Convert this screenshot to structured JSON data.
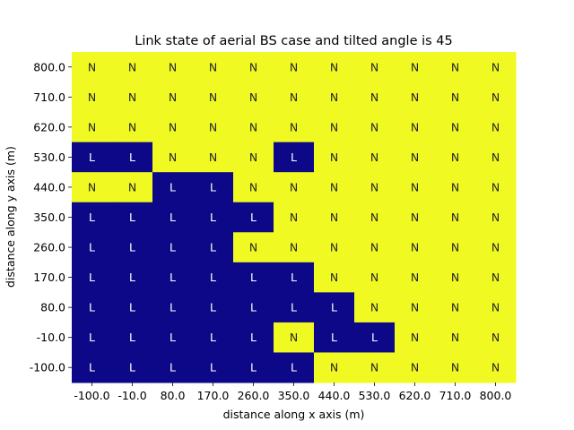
{
  "chart_data": {
    "type": "heatmap",
    "title": "Link state of aerial BS case and tilted angle is 45",
    "xlabel": "distance along x axis (m)",
    "ylabel": "distance along y axis (m)",
    "x_ticks": [
      "-100.0",
      "-10.0",
      "80.0",
      "170.0",
      "260.0",
      "350.0",
      "440.0",
      "530.0",
      "620.0",
      "710.0",
      "800.0"
    ],
    "y_ticks": [
      "800.0",
      "710.0",
      "620.0",
      "530.0",
      "440.0",
      "350.0",
      "260.0",
      "170.0",
      "80.0",
      "-10.0",
      "-100.0"
    ],
    "grid": false,
    "legend": "none",
    "cell_colors": {
      "L": "#0d0887",
      "N": "#f0f921"
    },
    "label_colors": {
      "L": "#ffffff",
      "N": "#262626"
    },
    "rows": [
      [
        "N",
        "N",
        "N",
        "N",
        "N",
        "N",
        "N",
        "N",
        "N",
        "N",
        "N"
      ],
      [
        "N",
        "N",
        "N",
        "N",
        "N",
        "N",
        "N",
        "N",
        "N",
        "N",
        "N"
      ],
      [
        "N",
        "N",
        "N",
        "N",
        "N",
        "N",
        "N",
        "N",
        "N",
        "N",
        "N"
      ],
      [
        "L",
        "L",
        "N",
        "N",
        "N",
        "L",
        "N",
        "N",
        "N",
        "N",
        "N"
      ],
      [
        "N",
        "N",
        "L",
        "L",
        "N",
        "N",
        "N",
        "N",
        "N",
        "N",
        "N"
      ],
      [
        "L",
        "L",
        "L",
        "L",
        "L",
        "N",
        "N",
        "N",
        "N",
        "N",
        "N"
      ],
      [
        "L",
        "L",
        "L",
        "L",
        "N",
        "N",
        "N",
        "N",
        "N",
        "N",
        "N"
      ],
      [
        "L",
        "L",
        "L",
        "L",
        "L",
        "L",
        "N",
        "N",
        "N",
        "N",
        "N"
      ],
      [
        "L",
        "L",
        "L",
        "L",
        "L",
        "L",
        "L",
        "N",
        "N",
        "N",
        "N"
      ],
      [
        "L",
        "L",
        "L",
        "L",
        "L",
        "N",
        "L",
        "L",
        "N",
        "N",
        "N"
      ],
      [
        "L",
        "L",
        "L",
        "L",
        "L",
        "L",
        "N",
        "N",
        "N",
        "N",
        "N"
      ]
    ]
  }
}
